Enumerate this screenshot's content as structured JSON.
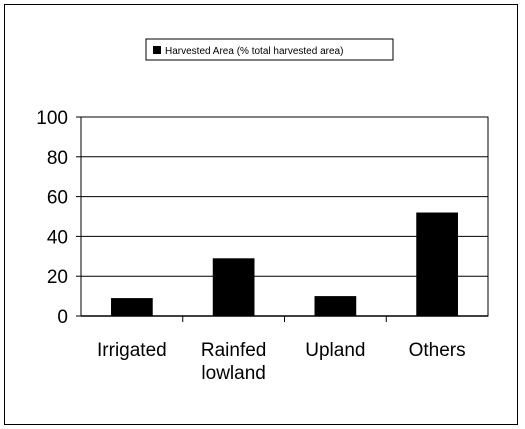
{
  "chart_data": {
    "type": "bar",
    "categories": [
      [
        "Irrigated"
      ],
      [
        "Rainfed",
        "lowland"
      ],
      [
        "Upland"
      ],
      [
        "Others"
      ]
    ],
    "series": [
      {
        "name": "Harvested Area (% total harvested area)",
        "values": [
          9,
          29,
          10,
          52
        ],
        "color": "#000000"
      }
    ],
    "ylim": [
      0,
      100
    ],
    "yticks": [
      0,
      20,
      40,
      60,
      80,
      100
    ],
    "grid": true,
    "legend_position": "top"
  }
}
